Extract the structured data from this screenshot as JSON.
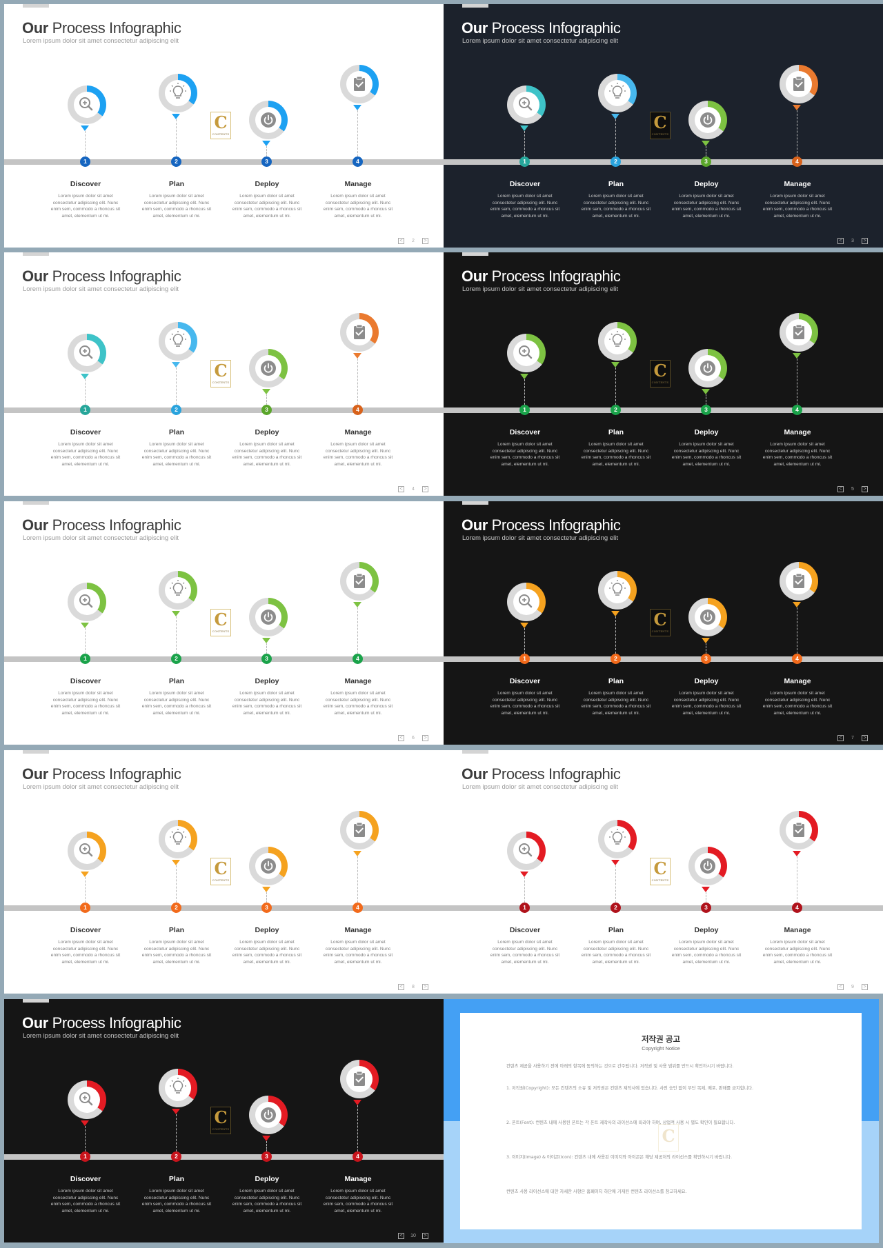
{
  "slide_common": {
    "title_bold": "Our",
    "title_rest": " Process Infographic",
    "subtitle": "Lorem ipsum dolor sit amet consectetur adipiscing elit",
    "steps": [
      {
        "number": "1",
        "label": "Discover",
        "icon": "magnifier-plus-icon",
        "desc": "Lorem ipsum dolor sit amet consectetur adipiscing elit. Nunc enim sem, commodo a rhoncus sit amet, elementum ut mi."
      },
      {
        "number": "2",
        "label": "Plan",
        "icon": "lightbulb-icon",
        "desc": "Lorem ipsum dolor sit amet consectetur adipiscing elit. Nunc enim sem, commodo a rhoncus sit amet, elementum ut mi."
      },
      {
        "number": "3",
        "label": "Deploy",
        "icon": "power-icon",
        "desc": "Lorem ipsum dolor sit amet consectetur adipiscing elit. Nunc enim sem, commodo a rhoncus sit amet, elementum ut mi."
      },
      {
        "number": "4",
        "label": "Manage",
        "icon": "clipboard-check-icon",
        "desc": "Lorem ipsum dolor sit amet consectetur adipiscing elit. Nunc enim sem, commodo a rhoncus sit amet, elementum ut mi."
      }
    ],
    "logo_letter": "C",
    "logo_text": "CONTENTS",
    "pager_prev": "<",
    "pager_next": ">"
  },
  "slides": [
    {
      "page": "2",
      "theme": "light",
      "ring_progress": 0.35,
      "colors": [
        "#1da1f2",
        "#1da1f2",
        "#1da1f2",
        "#1da1f2"
      ],
      "num_colors": [
        "#1565c0",
        "#1565c0",
        "#1565c0",
        "#1565c0"
      ]
    },
    {
      "page": "3",
      "theme": "navy",
      "ring_progress": 0.35,
      "colors": [
        "#3ec3c8",
        "#47b8ee",
        "#7dc242",
        "#ea7a2f"
      ],
      "num_colors": [
        "#26a69a",
        "#29a3dd",
        "#5aa62a",
        "#d8621b"
      ]
    },
    {
      "page": "4",
      "theme": "light",
      "ring_progress": 0.35,
      "colors": [
        "#3ec3c8",
        "#47b8ee",
        "#7dc242",
        "#ea7a2f"
      ],
      "num_colors": [
        "#26a69a",
        "#29a3dd",
        "#5aa62a",
        "#d8621b"
      ]
    },
    {
      "page": "5",
      "theme": "black",
      "ring_progress": 0.35,
      "colors": [
        "#7dc242",
        "#7dc242",
        "#7dc242",
        "#7dc242"
      ],
      "num_colors": [
        "#1aa34a",
        "#1aa34a",
        "#1aa34a",
        "#1aa34a"
      ]
    },
    {
      "page": "6",
      "theme": "light",
      "ring_progress": 0.35,
      "colors": [
        "#7dc242",
        "#7dc242",
        "#7dc242",
        "#7dc242"
      ],
      "num_colors": [
        "#1aa34a",
        "#1aa34a",
        "#1aa34a",
        "#1aa34a"
      ]
    },
    {
      "page": "7",
      "theme": "black",
      "ring_progress": 0.35,
      "colors": [
        "#f5a21f",
        "#f5a21f",
        "#f5a21f",
        "#f5a21f"
      ],
      "num_colors": [
        "#f26a1b",
        "#f26a1b",
        "#f26a1b",
        "#f26a1b"
      ]
    },
    {
      "page": "8",
      "theme": "light",
      "ring_progress": 0.35,
      "colors": [
        "#f5a21f",
        "#f5a21f",
        "#f5a21f",
        "#f5a21f"
      ],
      "num_colors": [
        "#f26a1b",
        "#f26a1b",
        "#f26a1b",
        "#f26a1b"
      ]
    },
    {
      "page": "9",
      "theme": "light",
      "ring_progress": 0.35,
      "colors": [
        "#e31b23",
        "#e31b23",
        "#e31b23",
        "#e31b23"
      ],
      "num_colors": [
        "#b0121b",
        "#b0121b",
        "#b0121b",
        "#b0121b"
      ]
    },
    {
      "page": "10",
      "theme": "black",
      "ring_progress": 0.35,
      "colors": [
        "#e31b23",
        "#e31b23",
        "#e31b23",
        "#e31b23"
      ],
      "num_colors": [
        "#c8141c",
        "#c8141c",
        "#c8141c",
        "#c8141c"
      ]
    }
  ],
  "notice": {
    "title": "저작권 공고",
    "subtitle": "Copyright Notice",
    "paragraphs": [
      "컨텐츠 제공을 사용하기 전에 아래의 항목에 동의하는 것으로 간주됩니다. 저작권 및 사용 범위를 반드시 확인하시기 바랍니다.",
      "1. 저작권(Copyright): 모든 컨텐츠의 소유 및 저작권은 컨텐츠 제작사에 있습니다. 사전 승인 없이 무단 복제, 배포, 판매를 금지합니다.",
      "2. 폰트(Font): 컨텐츠 내에 사용된 폰트는 각 폰트 제작사의 라이선스에 따라야 하며, 상업적 사용 시 별도 확인이 필요합니다.",
      "3. 이미지(Image) & 아이콘(Icon): 컨텐츠 내에 사용된 이미지와 아이콘은 해당 제공처의 라이선스를 확인하시기 바랍니다.",
      "컨텐츠 사용 라이선스에 대한 자세한 사항은 홈페이지 하단에 기재된 컨텐츠 라이선스를 참고하세요."
    ]
  }
}
